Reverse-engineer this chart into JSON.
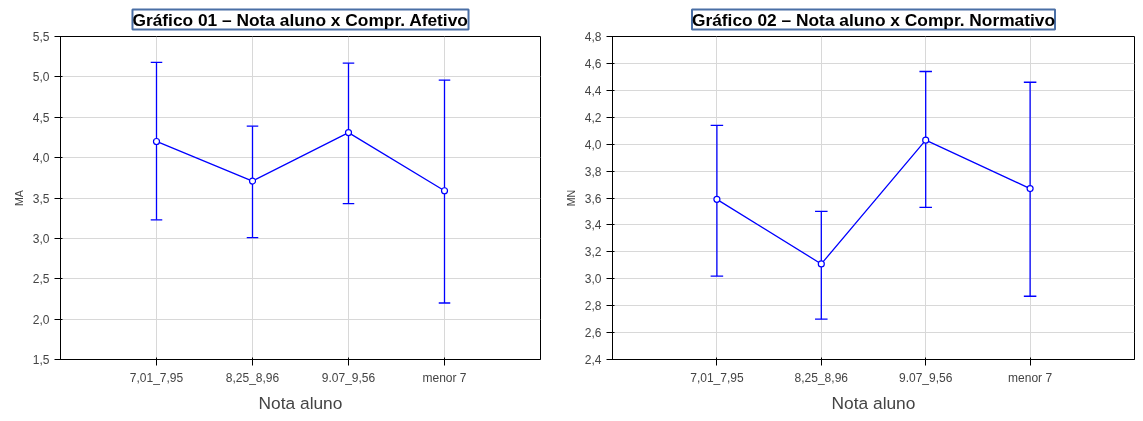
{
  "chart_data": [
    {
      "type": "line",
      "title": "Gráfico 01 – Nota aluno x Compr. Afetivo",
      "xlabel": "Nota aluno",
      "ylabel": "MA",
      "categories": [
        "7,01_7,95",
        "8,25_8,96",
        "9.07_9,56",
        "menor 7"
      ],
      "series": [
        {
          "color": "#0000ff",
          "values": [
            4.2,
            3.71,
            4.31,
            3.59
          ],
          "errors": [
            [
              3.23,
              5.18
            ],
            [
              3.01,
              4.39
            ],
            [
              3.43,
              5.17
            ],
            [
              2.2,
              4.96
            ]
          ]
        }
      ],
      "ylim": [
        1.5,
        5.5
      ],
      "yticks": [
        {
          "value": 1.5,
          "label": "1,5"
        },
        {
          "value": 2.0,
          "label": "2,0"
        },
        {
          "value": 2.5,
          "label": "2,5"
        },
        {
          "value": 3.0,
          "label": "3,0"
        },
        {
          "value": 3.5,
          "label": "3,5"
        },
        {
          "value": 4.0,
          "label": "4,0"
        },
        {
          "value": 4.5,
          "label": "4,5"
        },
        {
          "value": 5.0,
          "label": "5,0"
        },
        {
          "value": 5.5,
          "label": "5,5"
        }
      ],
      "grid": true,
      "marker": "circle",
      "line_style": "solid"
    },
    {
      "type": "line",
      "title": "Gráfico 02 – Nota aluno x Compr. Normativo",
      "xlabel": "Nota aluno",
      "ylabel": "MN",
      "categories": [
        "7,01_7,95",
        "8,25_8,96",
        "9.07_9,56",
        "menor 7"
      ],
      "series": [
        {
          "color": "#0000ff",
          "values": [
            3.59,
            3.11,
            4.03,
            3.67
          ],
          "errors": [
            [
              3.02,
              4.14
            ],
            [
              2.7,
              3.5
            ],
            [
              3.53,
              4.54
            ],
            [
              2.87,
              4.46
            ]
          ]
        }
      ],
      "ylim": [
        2.4,
        4.8
      ],
      "yticks": [
        {
          "value": 2.4,
          "label": "2,4"
        },
        {
          "value": 2.6,
          "label": "2,6"
        },
        {
          "value": 2.8,
          "label": "2,8"
        },
        {
          "value": 3.0,
          "label": "3,0"
        },
        {
          "value": 3.2,
          "label": "3,2"
        },
        {
          "value": 3.4,
          "label": "3,4"
        },
        {
          "value": 3.6,
          "label": "3,6"
        },
        {
          "value": 3.8,
          "label": "3,8"
        },
        {
          "value": 4.0,
          "label": "4,0"
        },
        {
          "value": 4.2,
          "label": "4,2"
        },
        {
          "value": 4.4,
          "label": "4,4"
        },
        {
          "value": 4.6,
          "label": "4,6"
        },
        {
          "value": 4.8,
          "label": "4,8"
        }
      ],
      "grid": true,
      "marker": "circle",
      "line_style": "solid"
    }
  ]
}
